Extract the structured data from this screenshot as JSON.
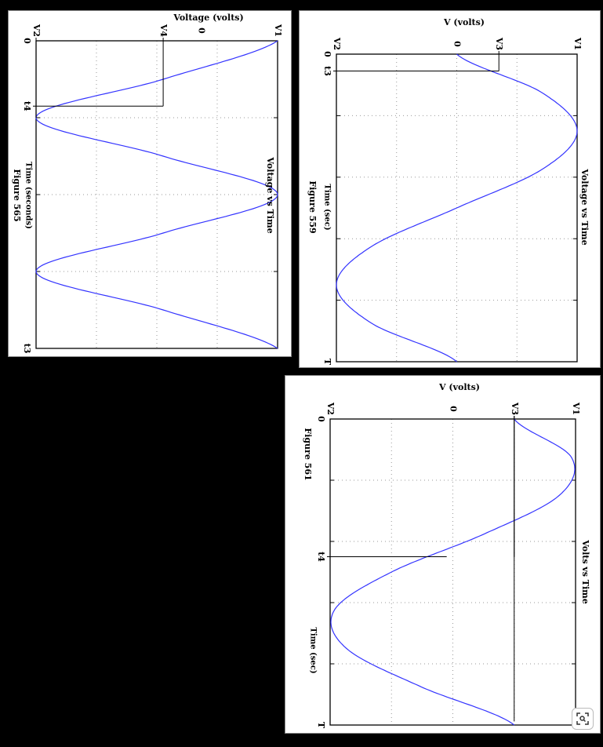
{
  "chart_data": [
    {
      "type": "line",
      "title": "Voltage vs Time",
      "xlabel": "Time (seconds)",
      "ylabel": "Voltage (volts)",
      "figure": "Figure 565",
      "x_ticks": [
        "0",
        "t4",
        "t3"
      ],
      "y_ticks": [
        "V2",
        "V4",
        "0",
        "V1"
      ],
      "grid": true,
      "series": [
        {
          "color": "#3333ff",
          "x": [
            0,
            0.5,
            1,
            1.5,
            2,
            2.5,
            3,
            3.5,
            4
          ],
          "y": [
            1,
            0.1,
            -0.9,
            0.1,
            1,
            0.1,
            -0.9,
            0.1,
            1
          ]
        }
      ],
      "markers": [
        {
          "x_label": "t4",
          "y_label": "V4"
        }
      ]
    },
    {
      "type": "line",
      "title": "Voltage vs Time",
      "xlabel": "Time (sec)",
      "ylabel": "V (volts)",
      "figure": "Figure 559",
      "x_ticks": [
        "0",
        "t3",
        "T"
      ],
      "y_ticks": [
        "V2",
        "0",
        "V3",
        "V1"
      ],
      "grid": true,
      "series": [
        {
          "color": "#3333ff",
          "x": [
            0,
            0.125,
            0.25,
            0.375,
            0.5,
            0.625,
            0.75,
            0.875,
            1
          ],
          "y": [
            0,
            0.707,
            1,
            0.707,
            0,
            -0.707,
            -1,
            -0.707,
            0
          ]
        }
      ],
      "markers": [
        {
          "x_label": "t3",
          "y_label": "V3"
        }
      ]
    },
    {
      "type": "line",
      "title": "Volts vs Time",
      "xlabel": "Time (sec)",
      "ylabel": "V (volts)",
      "figure": "Figure 561",
      "x_ticks": [
        "0",
        "t4",
        "T"
      ],
      "y_ticks": [
        "V2",
        "0",
        "V3",
        "V1"
      ],
      "grid": true,
      "series": [
        {
          "color": "#3333ff",
          "x": [
            0,
            0.125,
            0.25,
            0.375,
            0.5,
            0.625,
            0.75,
            0.875,
            1
          ],
          "y": [
            0.5,
            0.966,
            0.866,
            0.259,
            -0.5,
            -0.966,
            -0.866,
            -0.259,
            0.5
          ]
        }
      ],
      "markers": [
        {
          "x_label": "t4",
          "y_label": "V3"
        }
      ]
    }
  ],
  "ui": {
    "zoom_icon": "image-zoom-icon"
  }
}
